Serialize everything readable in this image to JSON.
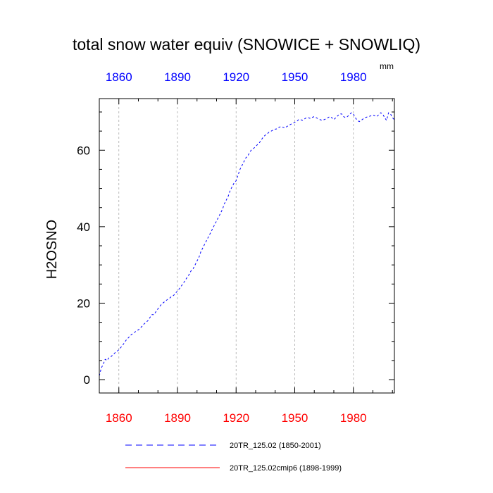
{
  "chart_data": {
    "type": "line",
    "title": "total snow water equiv (SNOWICE + SNOWLIQ)",
    "units": "mm",
    "ylabel": "H2OSNO",
    "xlabel": "",
    "xlim": [
      1850,
      2001
    ],
    "ylim": [
      -3.5,
      73.5
    ],
    "x_ticks_top": [
      "1860",
      "1890",
      "1920",
      "1950",
      "1980"
    ],
    "x_ticks_bottom": [
      "1860",
      "1890",
      "1920",
      "1950",
      "1980"
    ],
    "x_tick_values": [
      1860,
      1890,
      1920,
      1950,
      1980
    ],
    "y_ticks": [
      "0",
      "20",
      "40",
      "60"
    ],
    "y_tick_values": [
      0,
      20,
      40,
      60
    ],
    "colors": {
      "series1": "#0000ff",
      "series2": "#ff0000",
      "top_axis": "#0000ff",
      "bottom_axis": "#ff0000",
      "grid": "#aaaaaa"
    },
    "series": [
      {
        "name": "20TR_125.02 (1850-2001)",
        "style": "dashed",
        "color": "#0000ff",
        "x_start": 1850,
        "values": [
          1.0,
          3.0,
          4.0,
          5.3,
          5.0,
          5.8,
          6.0,
          6.5,
          7.0,
          7.4,
          7.8,
          8.4,
          9.0,
          9.8,
          10.5,
          11.0,
          11.6,
          12.0,
          12.3,
          12.8,
          13.0,
          13.5,
          14.0,
          14.6,
          15.0,
          15.5,
          16.3,
          17.0,
          17.0,
          17.8,
          18.5,
          19.2,
          19.8,
          20.2,
          20.6,
          21.0,
          21.3,
          21.8,
          22.0,
          22.6,
          23.2,
          23.8,
          24.5,
          25.2,
          26.0,
          26.8,
          27.5,
          28.5,
          29.0,
          30.0,
          31.0,
          32.0,
          33.5,
          34.5,
          35.5,
          36.5,
          37.5,
          38.5,
          39.5,
          40.5,
          41.5,
          42.5,
          43.5,
          44.5,
          46.0,
          47.0,
          48.0,
          49.5,
          50.5,
          51.5,
          52.0,
          53.5,
          55.0,
          56.0,
          57.0,
          58.0,
          58.5,
          59.5,
          60.2,
          60.5,
          61.0,
          61.5,
          62.0,
          62.8,
          63.5,
          64.0,
          64.3,
          64.8,
          65.0,
          65.3,
          65.5,
          65.6,
          66.0,
          66.2,
          66.0,
          65.8,
          66.2,
          66.5,
          66.8,
          67.0,
          67.3,
          67.5,
          68.0,
          68.0,
          67.8,
          68.2,
          68.5,
          68.5,
          68.3,
          68.6,
          68.8,
          68.5,
          68.2,
          68.0,
          67.8,
          68.0,
          68.2,
          68.5,
          68.8,
          68.5,
          68.0,
          68.5,
          69.0,
          69.5,
          69.5,
          68.8,
          68.5,
          68.8,
          69.3,
          69.8,
          69.5,
          68.5,
          67.8,
          67.5,
          67.8,
          68.2,
          68.5,
          68.7,
          68.8,
          69.0,
          69.2,
          69.0,
          68.8,
          69.3,
          69.8,
          69.5,
          68.5,
          67.8,
          69.8,
          69.5,
          68.5,
          68.0
        ]
      },
      {
        "name": "20TR_125.02cmip6 (1898-1999)",
        "style": "solid",
        "color": "#ff0000",
        "values": []
      }
    ],
    "legend": [
      {
        "label": "20TR_125.02 (1850-2001)",
        "style": "dashed",
        "color": "#0000ff"
      },
      {
        "label": "20TR_125.02cmip6 (1898-1999)",
        "style": "solid",
        "color": "#ff0000"
      }
    ],
    "legend_position": "bottom",
    "grid": true
  }
}
